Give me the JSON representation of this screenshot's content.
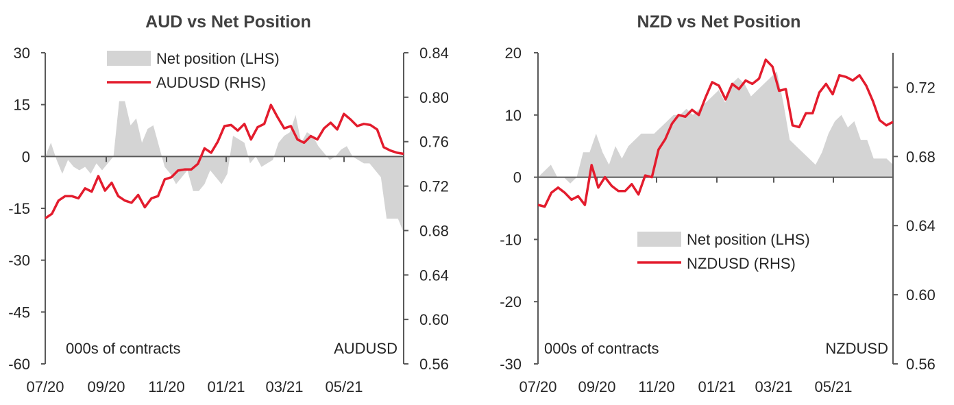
{
  "chart_data": [
    {
      "type": "area+line",
      "title": "AUD vs Net Position",
      "left_axis": {
        "ylim": [
          -60,
          30
        ],
        "ticks": [
          "30",
          "15",
          "0",
          "-15",
          "-30",
          "-45",
          "-60"
        ]
      },
      "right_axis": {
        "ylim": [
          0.56,
          0.84
        ],
        "ticks": [
          "0.84",
          "0.80",
          "0.76",
          "0.72",
          "0.68",
          "0.64",
          "0.60",
          "0.56"
        ]
      },
      "x_ticks": [
        "07/20",
        "09/20",
        "11/20",
        "01/21",
        "03/21",
        "05/21"
      ],
      "left_unit": "000s of contracts",
      "right_unit": "AUDUSD",
      "legend_position": "top",
      "colors": {
        "area": "#d4d4d4",
        "line": "#e31c2d"
      },
      "series": [
        {
          "name": "Net position (LHS)",
          "kind": "area",
          "axis": "left",
          "x_start": "2020-07",
          "step_weeks": 1,
          "values": [
            0,
            4,
            -1,
            -5,
            -1,
            -3,
            -4,
            -3,
            -5,
            -2,
            -4,
            -2,
            0,
            16,
            16,
            9,
            11,
            4,
            8,
            9,
            3,
            -3,
            -5,
            -8,
            -6,
            -4,
            -10,
            -10,
            -8,
            -4,
            -6,
            -8,
            -5,
            6,
            5,
            4,
            -2,
            0,
            -3,
            -2,
            -1,
            4,
            6,
            7,
            12,
            4,
            7,
            6,
            3,
            1,
            -1,
            0,
            2,
            3,
            0,
            -1,
            -2,
            -2,
            -4,
            -6,
            -18,
            -18,
            -18,
            -22
          ]
        },
        {
          "name": "AUDUSD (RHS)",
          "kind": "line",
          "axis": "right",
          "x_start": "2020-07",
          "step_weeks": 1,
          "values": [
            0.691,
            0.695,
            0.707,
            0.711,
            0.711,
            0.709,
            0.718,
            0.715,
            0.729,
            0.716,
            0.723,
            0.711,
            0.707,
            0.705,
            0.712,
            0.701,
            0.709,
            0.711,
            0.726,
            0.728,
            0.734,
            0.735,
            0.735,
            0.74,
            0.754,
            0.75,
            0.76,
            0.774,
            0.775,
            0.77,
            0.776,
            0.762,
            0.773,
            0.776,
            0.793,
            0.782,
            0.772,
            0.774,
            0.762,
            0.759,
            0.765,
            0.762,
            0.772,
            0.777,
            0.771,
            0.785,
            0.78,
            0.774,
            0.776,
            0.775,
            0.771,
            0.755,
            0.752,
            0.75,
            0.749
          ]
        }
      ]
    },
    {
      "type": "area+line",
      "title": "NZD vs Net Position",
      "left_axis": {
        "ylim": [
          -30,
          20
        ],
        "ticks": [
          "20",
          "10",
          "0",
          "-10",
          "-20",
          "-30"
        ]
      },
      "right_axis": {
        "ylim": [
          0.56,
          0.74
        ],
        "ticks": [
          "0.72",
          "0.68",
          "0.64",
          "0.60",
          "0.56"
        ]
      },
      "x_ticks": [
        "07/20",
        "09/20",
        "11/20",
        "01/21",
        "03/21",
        "05/21"
      ],
      "left_unit": "000s of contracts",
      "right_unit": "NZDUSD",
      "legend_position": "center-right",
      "colors": {
        "area": "#d4d4d4",
        "line": "#e31c2d"
      },
      "series": [
        {
          "name": "Net position (LHS)",
          "kind": "area",
          "axis": "left",
          "x_start": "2020-07",
          "step_weeks": 1,
          "values": [
            0,
            1,
            2,
            0,
            0,
            -1,
            0,
            4,
            4,
            7,
            4,
            2,
            5,
            3,
            5,
            6,
            7,
            7,
            7,
            8,
            9,
            10,
            10,
            11,
            10,
            11,
            12,
            13,
            14,
            12,
            15,
            16,
            15,
            13,
            14,
            15,
            16,
            17,
            12,
            6,
            5,
            4,
            3,
            2,
            4,
            7,
            9,
            10,
            8,
            9,
            6,
            6,
            3,
            3,
            3,
            2
          ]
        },
        {
          "name": "NZDUSD (RHS)",
          "kind": "line",
          "axis": "right",
          "x_start": "2020-07",
          "step_weeks": 1,
          "values": [
            0.652,
            0.651,
            0.659,
            0.662,
            0.659,
            0.655,
            0.657,
            0.652,
            0.675,
            0.662,
            0.668,
            0.663,
            0.66,
            0.66,
            0.664,
            0.658,
            0.669,
            0.668,
            0.684,
            0.69,
            0.699,
            0.704,
            0.703,
            0.707,
            0.704,
            0.714,
            0.723,
            0.721,
            0.713,
            0.722,
            0.719,
            0.724,
            0.722,
            0.725,
            0.736,
            0.732,
            0.718,
            0.719,
            0.698,
            0.697,
            0.705,
            0.705,
            0.717,
            0.722,
            0.716,
            0.727,
            0.726,
            0.724,
            0.727,
            0.721,
            0.712,
            0.701,
            0.698,
            0.7
          ]
        }
      ]
    }
  ]
}
